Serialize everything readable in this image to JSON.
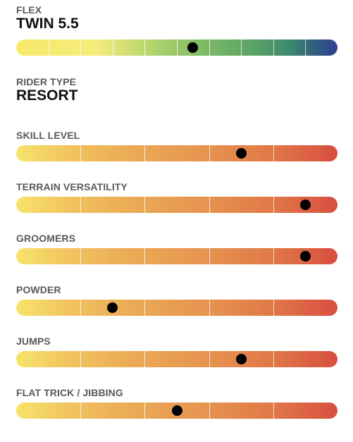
{
  "flex": {
    "label": "FLEX",
    "value": "TWIN 5.5",
    "level": 5.5,
    "scale_max": 10
  },
  "rider_type": {
    "label": "RIDER TYPE",
    "value": "RESORT"
  },
  "ratings": [
    {
      "label": "SKILL LEVEL",
      "level": 3.5,
      "scale_max": 5
    },
    {
      "label": "TERRAIN VERSATILITY",
      "level": 4.5,
      "scale_max": 5
    },
    {
      "label": "GROOMERS",
      "level": 4.5,
      "scale_max": 5
    },
    {
      "label": "POWDER",
      "level": 1.5,
      "scale_max": 5
    },
    {
      "label": "JUMPS",
      "level": 3.5,
      "scale_max": 5
    },
    {
      "label": "FLAT TRICK / JIBBING",
      "level": 2.5,
      "scale_max": 5
    }
  ],
  "colors": {
    "rating_low": "#f6e46a",
    "rating_high": "#d84e3f",
    "flex_soft": "#f7ea6a",
    "flex_stiff": "#2e3e8e",
    "marker": "#000000"
  }
}
